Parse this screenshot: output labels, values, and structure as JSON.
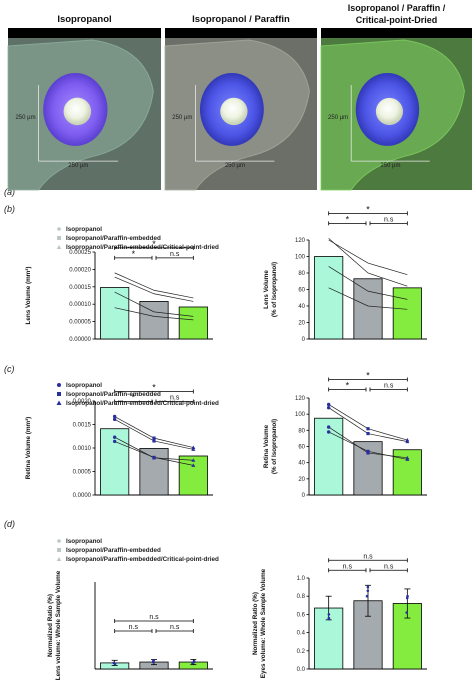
{
  "panel_labels": [
    "(a)",
    "(b)",
    "(c)",
    "(d)"
  ],
  "images": [
    {
      "title": "Isopropanol",
      "scale_v": "250 µm",
      "scale_h": "250 µm",
      "bg": "#5f7166",
      "tint": "#8fb0a0"
    },
    {
      "title": "Isopropanol / Paraffin",
      "scale_v": "250 µm",
      "scale_h": "250 µm",
      "bg": "#6b6f68",
      "tint": "#a5aa9e"
    },
    {
      "title_lines": [
        "Isopropanol / Paraffin /",
        "Critical-point-Dried"
      ],
      "scale_v": "250 µm",
      "scale_h": "250 µm",
      "bg": "#4d7a3e",
      "tint": "#7fcf62"
    }
  ],
  "legends": {
    "b": [
      "Isopropanol",
      "Isopropanol/Paraffin-embedded",
      "Isopropanol/Paraffin-embedded/Critical-point-dried"
    ],
    "c": [
      "Isopropanol",
      "Isopropanol/Paraffin-embedded",
      "Isopropanol/Paraffin-embedded/Critical-point-dried"
    ],
    "d": [
      "Isopropanol",
      "Isopropanol/Paraffin-embedded",
      "Isopropanol/Paraffin-embedded/Critical-point-dried"
    ]
  },
  "colors": {
    "bar1": "#aaf7da",
    "bar2": "#a4aaae",
    "bar3": "#84ec3e",
    "marker_b": "#b9c9c4",
    "marker_c": "#2a2f9e",
    "marker_d": "#2a2f9e"
  },
  "chart_data": [
    {
      "id": "b-left",
      "type": "bar",
      "categories": [
        "Isopropanol",
        "Isopropanol/Paraffin-embedded",
        "Isopropanol/Paraffin-embedded/Critical-point-dried"
      ],
      "values": [
        0.000148,
        0.000108,
        9.2e-05
      ],
      "ylabel": "Lens Volume (mm³)",
      "ylim": [
        0,
        0.00025
      ],
      "yticks": [
        0,
        5e-05,
        0.0001,
        0.00015,
        0.0002,
        0.00025
      ],
      "ytick_labels": [
        "0.00000",
        "0.00005",
        "0.00010",
        "0.00015",
        "0.00020",
        "0.00025"
      ],
      "paired_series": [
        [
          0.00019,
          0.00014,
          0.000118
        ],
        [
          0.000135,
          7.8e-05,
          6.5e-05
        ],
        [
          9e-05,
          6.5e-05,
          5.5e-05
        ],
        [
          0.000178,
          0.00013,
          0.000108
        ]
      ],
      "marker": "circle",
      "significance": [
        {
          "from": 0,
          "to": 2,
          "label": "*"
        },
        {
          "from": 0,
          "to": 1,
          "label": "*"
        },
        {
          "from": 1,
          "to": 2,
          "label": "n.s"
        }
      ]
    },
    {
      "id": "b-right",
      "type": "bar",
      "categories": [
        "Isopropanol",
        "Isopropanol/Paraffin-embedded",
        "Isopropanol/Paraffin-embedded/Critical-point-dried"
      ],
      "values": [
        100,
        73,
        62
      ],
      "ylabel_lines": [
        "Lens Volume",
        "(% of Isopropanol)"
      ],
      "ylim": [
        0,
        120
      ],
      "yticks": [
        0,
        20,
        40,
        60,
        80,
        100,
        120
      ],
      "ytick_labels": [
        "0",
        "20",
        "40",
        "60",
        "80",
        "100",
        "120"
      ],
      "paired_series": [
        [
          120,
          92,
          78
        ],
        [
          122,
          80,
          64
        ],
        [
          88,
          58,
          48
        ],
        [
          62,
          40,
          36
        ]
      ],
      "marker": "circle",
      "significance": [
        {
          "from": 0,
          "to": 2,
          "label": "*"
        },
        {
          "from": 0,
          "to": 1,
          "label": "*"
        },
        {
          "from": 1,
          "to": 2,
          "label": "n.s"
        }
      ]
    },
    {
      "id": "c-left",
      "type": "bar",
      "categories": [
        "Isopropanol",
        "Isopropanol/Paraffin-embedded",
        "Isopropanol/Paraffin-embedded/Critical-point-dried"
      ],
      "values": [
        0.00141,
        0.00099,
        0.00083
      ],
      "ylabel": "Retina Volume (mm³)",
      "ylim": [
        0,
        0.002
      ],
      "yticks": [
        0,
        0.0005,
        0.001,
        0.0015,
        0.002
      ],
      "ytick_labels": [
        "0.0000",
        "0.0005",
        "0.0010",
        "0.0015",
        "0.0020"
      ],
      "paired_series": [
        [
          0.00167,
          0.00121,
          0.00101
        ],
        [
          0.00161,
          0.00115,
          0.00097
        ],
        [
          0.00123,
          0.00079,
          0.00074
        ],
        [
          0.00114,
          0.0008,
          0.00063
        ]
      ],
      "marker": "mixed",
      "significance": [
        {
          "from": 0,
          "to": 2,
          "label": "*"
        },
        {
          "from": 0,
          "to": 1,
          "label": "*"
        },
        {
          "from": 1,
          "to": 2,
          "label": "n.s"
        }
      ]
    },
    {
      "id": "c-right",
      "type": "bar",
      "categories": [
        "Isopropanol",
        "Isopropanol/Paraffin-embedded",
        "Isopropanol/Paraffin-embedded/Critical-point-dried"
      ],
      "values": [
        95,
        66,
        56
      ],
      "ylabel_lines": [
        "Retina Volume",
        "(% of Isopropanol)"
      ],
      "ylim": [
        0,
        120
      ],
      "yticks": [
        0,
        20,
        40,
        60,
        80,
        100,
        120
      ],
      "ytick_labels": [
        "0",
        "20",
        "40",
        "60",
        "80",
        "100",
        "120"
      ],
      "paired_series": [
        [
          112,
          82,
          68
        ],
        [
          108,
          76,
          66
        ],
        [
          84,
          52,
          46
        ],
        [
          78,
          54,
          44
        ]
      ],
      "marker": "mixed",
      "significance": [
        {
          "from": 0,
          "to": 2,
          "label": "*"
        },
        {
          "from": 0,
          "to": 1,
          "label": "*"
        },
        {
          "from": 1,
          "to": 2,
          "label": "n.s"
        }
      ]
    },
    {
      "id": "d-left",
      "type": "bar",
      "categories": [
        "Isopropanol",
        "Isopropanol/Paraffin-embedded",
        "Isopropanol/Paraffin-embedded/Critical-point-dried"
      ],
      "values": [
        0.07,
        0.08,
        0.08
      ],
      "errors": [
        0.03,
        0.03,
        0.03
      ],
      "ylabel_lines": [
        "Normalized Ratio (%)",
        "Lens volume: Whole Sample Volume"
      ],
      "ylim": [
        0,
        1.0
      ],
      "yticks": [],
      "ytick_labels": [],
      "points": [
        [
          0.06,
          0.08,
          0.07
        ],
        [
          0.07,
          0.09,
          0.08
        ],
        [
          0.06,
          0.1,
          0.09
        ]
      ],
      "marker": "circle",
      "significance": [
        {
          "from": 0,
          "to": 2,
          "label": "n.s"
        },
        {
          "from": 0,
          "to": 1,
          "label": "n.s"
        },
        {
          "from": 1,
          "to": 2,
          "label": "n.s"
        }
      ]
    },
    {
      "id": "d-right",
      "type": "bar",
      "categories": [
        "Isopropanol",
        "Isopropanol/Paraffin-embedded",
        "Isopropanol/Paraffin-embedded/Critical-point-dried"
      ],
      "values": [
        0.67,
        0.75,
        0.72
      ],
      "errors": [
        0.13,
        0.17,
        0.16
      ],
      "ylabel_lines": [
        "Normalized Ratio (%)",
        "Eyes volume: Whole Sample Volume"
      ],
      "ylim": [
        0,
        1.0
      ],
      "yticks": [
        0,
        0.2,
        0.4,
        0.6,
        0.8,
        1.0
      ],
      "ytick_labels": [
        "0.0",
        "0.2",
        "0.4",
        "0.6",
        "0.8",
        "1.0"
      ],
      "points": [
        [
          0.55,
          0.8,
          0.62
        ],
        [
          0.6,
          0.9,
          0.78
        ],
        [
          0.56,
          0.86,
          0.8
        ]
      ],
      "marker": "circle",
      "significance": [
        {
          "from": 0,
          "to": 2,
          "label": "n.s"
        },
        {
          "from": 0,
          "to": 1,
          "label": "n.s"
        },
        {
          "from": 1,
          "to": 2,
          "label": "n.s"
        }
      ]
    }
  ]
}
